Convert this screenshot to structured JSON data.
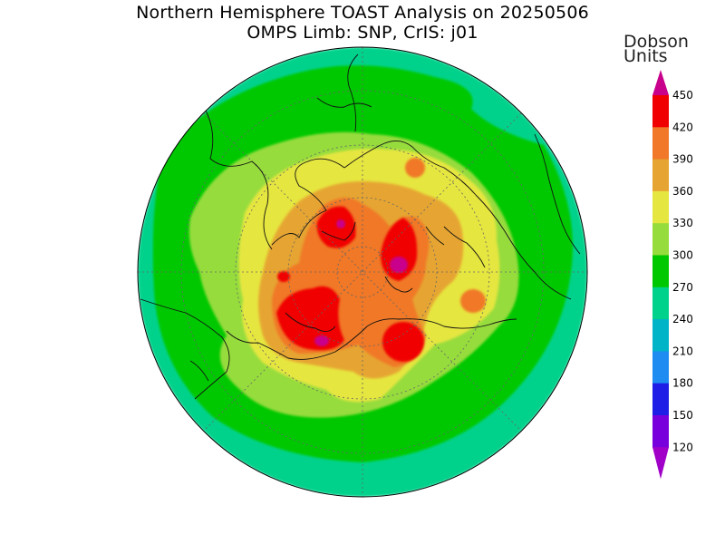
{
  "title": {
    "line1": "Northern Hemisphere TOAST Analysis on 20250506",
    "line2": "OMPS Limb: SNP, CrIS: j01"
  },
  "colorbar": {
    "unit_line1": "Dobson",
    "unit_line2": "Units",
    "levels": [
      {
        "value": "450",
        "color": "#c8008c"
      },
      {
        "value": "420",
        "color": "#f00000"
      },
      {
        "value": "390",
        "color": "#f07828"
      },
      {
        "value": "360",
        "color": "#e6a532"
      },
      {
        "value": "330",
        "color": "#e6e641"
      },
      {
        "value": "300",
        "color": "#96dc3c"
      },
      {
        "value": "270",
        "color": "#00c800"
      },
      {
        "value": "240",
        "color": "#00d28c"
      },
      {
        "value": "210",
        "color": "#00b4c8"
      },
      {
        "value": "180",
        "color": "#1e8cf0"
      },
      {
        "value": "150",
        "color": "#1e1ee6"
      },
      {
        "value": "120",
        "color": "#7800dc"
      }
    ],
    "bottom_color": "#a000c8"
  },
  "map_colors": {
    "c240": "#00d28c",
    "c270": "#00c800",
    "c300": "#96dc3c",
    "c330": "#e6e641",
    "c360": "#e6a532",
    "c390": "#f07828",
    "c420": "#f00000",
    "c450": "#c8008c"
  }
}
